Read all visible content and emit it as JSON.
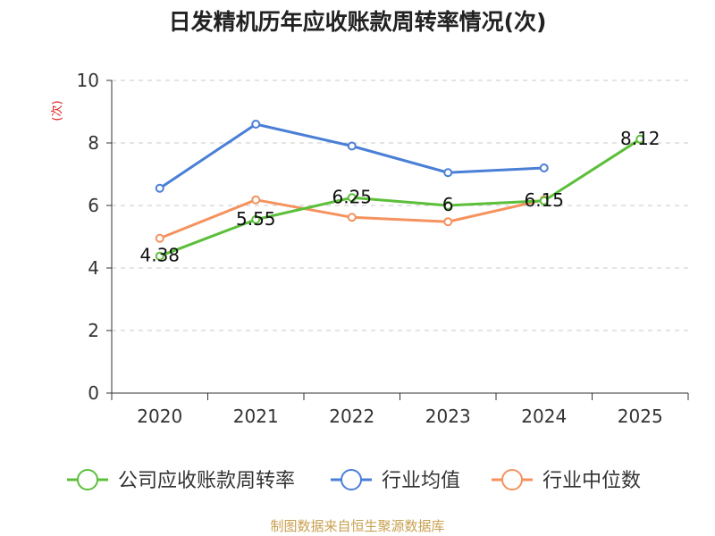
{
  "chart_data": {
    "type": "line",
    "title": "日发精机历年应收账款周转率情况(次)",
    "ylabel": "(次)",
    "xlabel": "",
    "categories": [
      "2020",
      "2021",
      "2022",
      "2023",
      "2024",
      "2025"
    ],
    "yticks": [
      "0",
      "2",
      "4",
      "6",
      "8",
      "10"
    ],
    "ylim": [
      0,
      10
    ],
    "grid": true,
    "legend_position": "bottom",
    "series": [
      {
        "name": "公司应收账款周转率",
        "color": "#5cbf3a",
        "values": [
          4.38,
          5.55,
          6.25,
          6.0,
          6.15,
          8.12
        ],
        "labels": [
          "4.38",
          "5.55",
          "6.25",
          "6",
          "6.15",
          "8.12"
        ]
      },
      {
        "name": "行业均值",
        "color": "#4a7fd6",
        "values": [
          6.55,
          8.6,
          7.9,
          7.05,
          7.2,
          null
        ],
        "labels": []
      },
      {
        "name": "行业中位数",
        "color": "#f5925e",
        "values": [
          4.95,
          6.18,
          5.62,
          5.48,
          6.18,
          null
        ],
        "labels": []
      }
    ]
  },
  "source": "制图数据来自恒生聚源数据库",
  "colors": {
    "title": "#222222",
    "axis": "#333333",
    "grid": "#c8c8c8",
    "ylabel": "#e02020",
    "source": "#c8a050"
  }
}
